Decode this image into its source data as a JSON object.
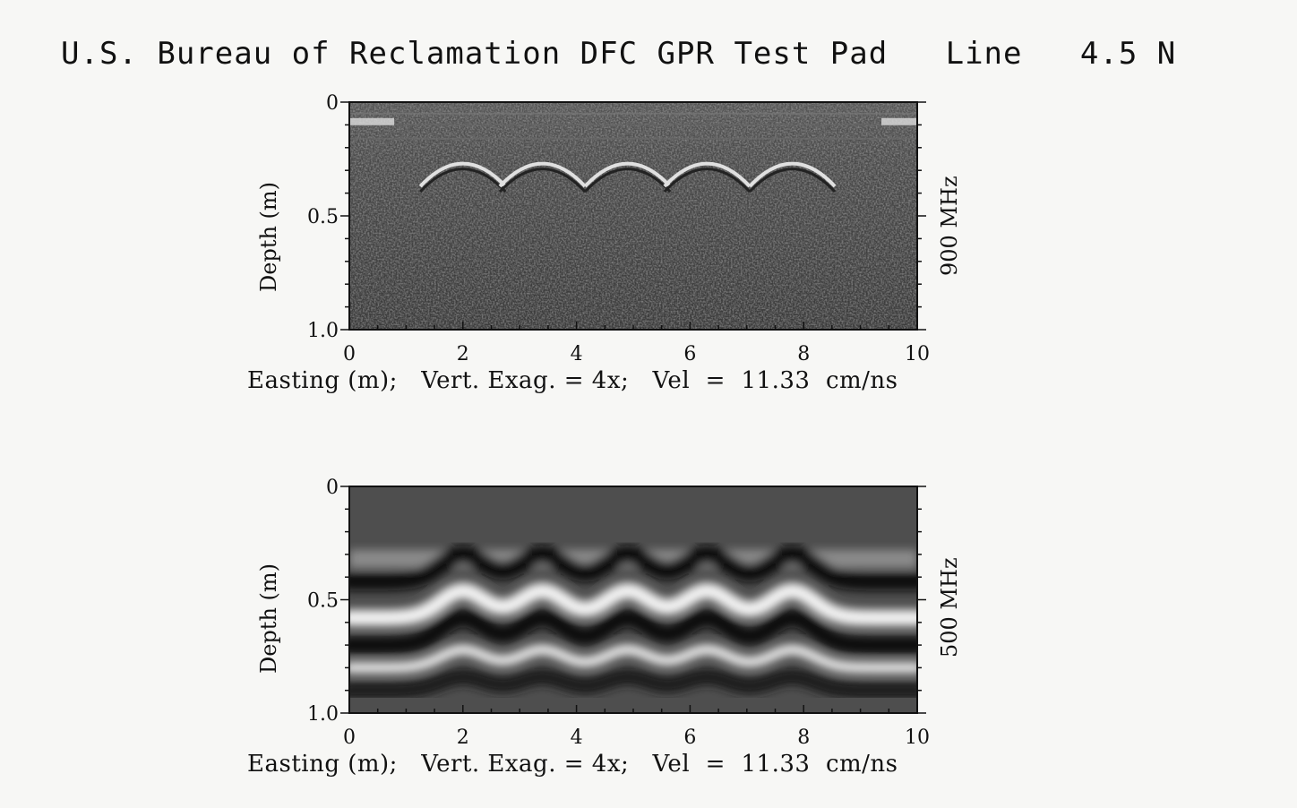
{
  "title": "U.S. Bureau of Reclamation DFC GPR Test Pad   Line   4.5 N",
  "chart_data": [
    {
      "type": "heatmap",
      "frequency": "900 MHz",
      "ylabel": "Depth (m)",
      "xlabel_line": "Easting (m);   Vert. Exag. = 4x;   Vel  =  11.33  cm/ns",
      "x_ticks": [
        "0",
        "2",
        "4",
        "6",
        "8",
        "10"
      ],
      "y_ticks": [
        "0",
        "0.5",
        "1.0"
      ],
      "xlim": [
        0,
        10
      ],
      "ylim": [
        1.0,
        0
      ],
      "hyperbola_apex_easting_m": [
        2.0,
        3.4,
        4.9,
        6.3,
        7.8
      ],
      "hyperbola_apex_depth_m": 0.27
    },
    {
      "type": "heatmap",
      "frequency": "500 MHz",
      "ylabel": "Depth (m)",
      "xlabel_line": "Easting (m);   Vert. Exag. = 4x;   Vel  =  11.33  cm/ns",
      "x_ticks": [
        "0",
        "2",
        "4",
        "6",
        "8",
        "10"
      ],
      "y_ticks": [
        "0",
        "0.5",
        "1.0"
      ],
      "xlim": [
        0,
        10
      ],
      "ylim": [
        1.0,
        0
      ],
      "hyperbola_apex_easting_m": [
        2.0,
        3.4,
        4.9,
        6.3,
        7.8
      ],
      "hyperbola_apex_depth_m": 0.3
    }
  ]
}
